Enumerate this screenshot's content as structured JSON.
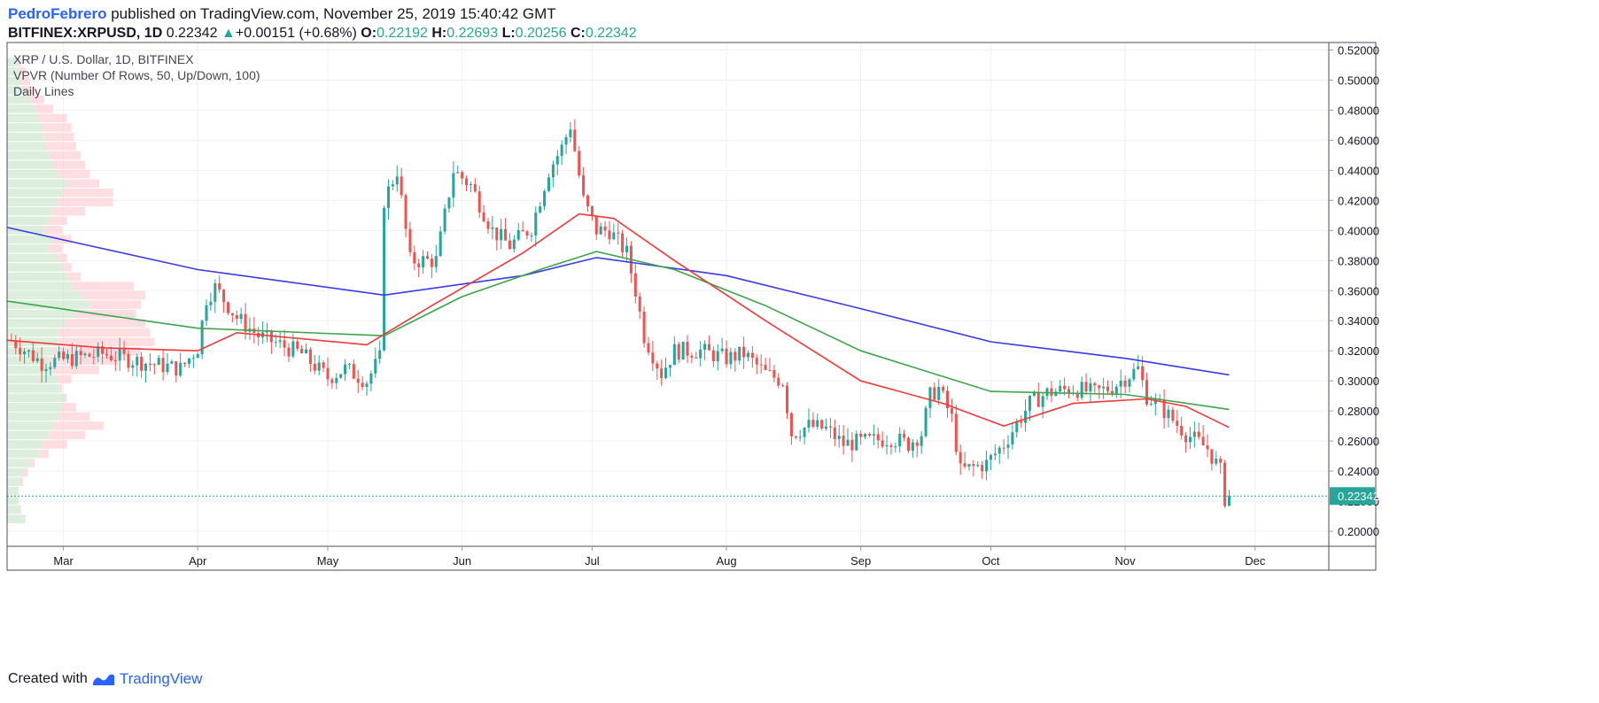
{
  "header": {
    "author": "PedroFebrero",
    "published_text": "published on TradingView.com, November 25, 2019 15:40:42 GMT",
    "symbol": "BITFINEX:XRPUSD, 1D",
    "last": "0.22342",
    "change": "+0.00151 (+0.68%)",
    "o_label": "O:",
    "o_value": "0.22192",
    "h_label": "H:",
    "h_value": "0.22693",
    "l_label": "L:",
    "l_value": "0.20256",
    "c_label": "C:",
    "c_value": "0.22342"
  },
  "legend": {
    "line1": "XRP / U.S. Dollar, 1D, BITFINEX",
    "line2": "VPVR (Number Of Rows, 50, Up/Down, 100)",
    "line3": "Daily Lines"
  },
  "footer": {
    "created_with": "Created with",
    "brand": "TradingView"
  },
  "colors": {
    "up": "#26a69a",
    "down": "#ef5350",
    "ma_short": "#f03a3a",
    "ma_mid": "#3da54a",
    "ma_long": "#3a3ae8",
    "price_tag": "#26a69a"
  },
  "chart_data": {
    "type": "candlestick",
    "y_range": [
      0.19,
      0.525
    ],
    "y_ticks": [
      0.2,
      0.22,
      0.24,
      0.26,
      0.28,
      0.3,
      0.32,
      0.34,
      0.36,
      0.38,
      0.4,
      0.42,
      0.44,
      0.46,
      0.48,
      0.5,
      0.52
    ],
    "y_tick_labels": [
      "0.20000",
      "0.22000",
      "0.24000",
      "0.26000",
      "0.28000",
      "0.30000",
      "0.32000",
      "0.34000",
      "0.36000",
      "0.38000",
      "0.40000",
      "0.42000",
      "0.44000",
      "0.46000",
      "0.48000",
      "0.50000",
      "0.52000"
    ],
    "x_range": [
      "2019-02-16",
      "2019-12-18"
    ],
    "x_ticks": [
      {
        "date": "2019-03-01",
        "label": "Mar"
      },
      {
        "date": "2019-04-01",
        "label": "Apr"
      },
      {
        "date": "2019-05-01",
        "label": "May"
      },
      {
        "date": "2019-06-01",
        "label": "Jun"
      },
      {
        "date": "2019-07-01",
        "label": "Jul"
      },
      {
        "date": "2019-08-01",
        "label": "Aug"
      },
      {
        "date": "2019-09-01",
        "label": "Sep"
      },
      {
        "date": "2019-10-01",
        "label": "Oct"
      },
      {
        "date": "2019-11-01",
        "label": "Nov"
      },
      {
        "date": "2019-12-01",
        "label": "Dec"
      }
    ],
    "first_candle_date": "2019-02-17",
    "last_price": 0.22342,
    "last_price_label": "0.22342",
    "price_anchors": [
      [
        "2019-02-17",
        0.327
      ],
      [
        "2019-02-24",
        0.312
      ],
      [
        "2019-03-01",
        0.314
      ],
      [
        "2019-03-10",
        0.318
      ],
      [
        "2019-03-20",
        0.312
      ],
      [
        "2019-03-28",
        0.308
      ],
      [
        "2019-04-01",
        0.322
      ],
      [
        "2019-04-03",
        0.355
      ],
      [
        "2019-04-05",
        0.362
      ],
      [
        "2019-04-10",
        0.342
      ],
      [
        "2019-04-15",
        0.33
      ],
      [
        "2019-04-25",
        0.318
      ],
      [
        "2019-05-01",
        0.302
      ],
      [
        "2019-05-05",
        0.308
      ],
      [
        "2019-05-10",
        0.3
      ],
      [
        "2019-05-13",
        0.315
      ],
      [
        "2019-05-14",
        0.42
      ],
      [
        "2019-05-17",
        0.44
      ],
      [
        "2019-05-20",
        0.38
      ],
      [
        "2019-05-26",
        0.38
      ],
      [
        "2019-05-30",
        0.44
      ],
      [
        "2019-06-03",
        0.43
      ],
      [
        "2019-06-08",
        0.4
      ],
      [
        "2019-06-12",
        0.39
      ],
      [
        "2019-06-17",
        0.402
      ],
      [
        "2019-06-21",
        0.44
      ],
      [
        "2019-06-24",
        0.455
      ],
      [
        "2019-06-26",
        0.47
      ],
      [
        "2019-06-29",
        0.42
      ],
      [
        "2019-07-02",
        0.4
      ],
      [
        "2019-07-05",
        0.4
      ],
      [
        "2019-07-09",
        0.385
      ],
      [
        "2019-07-11",
        0.36
      ],
      [
        "2019-07-13",
        0.33
      ],
      [
        "2019-07-17",
        0.305
      ],
      [
        "2019-07-20",
        0.32
      ],
      [
        "2019-07-26",
        0.32
      ],
      [
        "2019-08-01",
        0.315
      ],
      [
        "2019-08-05",
        0.318
      ],
      [
        "2019-08-10",
        0.305
      ],
      [
        "2019-08-14",
        0.3
      ],
      [
        "2019-08-16",
        0.265
      ],
      [
        "2019-08-20",
        0.27
      ],
      [
        "2019-08-24",
        0.268
      ],
      [
        "2019-08-28",
        0.258
      ],
      [
        "2019-09-03",
        0.26
      ],
      [
        "2019-09-08",
        0.262
      ],
      [
        "2019-09-12",
        0.258
      ],
      [
        "2019-09-15",
        0.265
      ],
      [
        "2019-09-17",
        0.29
      ],
      [
        "2019-09-19",
        0.295
      ],
      [
        "2019-09-22",
        0.275
      ],
      [
        "2019-09-24",
        0.24
      ],
      [
        "2019-09-30",
        0.245
      ],
      [
        "2019-10-04",
        0.258
      ],
      [
        "2019-10-10",
        0.285
      ],
      [
        "2019-10-14",
        0.292
      ],
      [
        "2019-10-20",
        0.295
      ],
      [
        "2019-10-25",
        0.292
      ],
      [
        "2019-10-29",
        0.296
      ],
      [
        "2019-11-04",
        0.308
      ],
      [
        "2019-11-06",
        0.29
      ],
      [
        "2019-11-10",
        0.28
      ],
      [
        "2019-11-15",
        0.265
      ],
      [
        "2019-11-20",
        0.255
      ],
      [
        "2019-11-23",
        0.24
      ],
      [
        "2019-11-24",
        0.222
      ],
      [
        "2019-11-25",
        0.22342
      ]
    ],
    "ma_long": [
      [
        "2019-02-16",
        0.402
      ],
      [
        "2019-04-01",
        0.374
      ],
      [
        "2019-05-14",
        0.357
      ],
      [
        "2019-06-15",
        0.37
      ],
      [
        "2019-07-02",
        0.382
      ],
      [
        "2019-08-01",
        0.37
      ],
      [
        "2019-09-01",
        0.348
      ],
      [
        "2019-10-01",
        0.326
      ],
      [
        "2019-11-01",
        0.315
      ],
      [
        "2019-11-25",
        0.304
      ]
    ],
    "ma_mid": [
      [
        "2019-02-16",
        0.353
      ],
      [
        "2019-04-01",
        0.335
      ],
      [
        "2019-05-14",
        0.33
      ],
      [
        "2019-06-01",
        0.356
      ],
      [
        "2019-06-20",
        0.375
      ],
      [
        "2019-07-02",
        0.386
      ],
      [
        "2019-07-20",
        0.374
      ],
      [
        "2019-08-10",
        0.35
      ],
      [
        "2019-09-01",
        0.32
      ],
      [
        "2019-10-01",
        0.293
      ],
      [
        "2019-11-01",
        0.291
      ],
      [
        "2019-11-25",
        0.281
      ]
    ],
    "ma_short": [
      [
        "2019-02-16",
        0.327
      ],
      [
        "2019-03-10",
        0.322
      ],
      [
        "2019-04-01",
        0.32
      ],
      [
        "2019-04-10",
        0.332
      ],
      [
        "2019-05-10",
        0.324
      ],
      [
        "2019-05-25",
        0.35
      ],
      [
        "2019-06-15",
        0.385
      ],
      [
        "2019-06-28",
        0.411
      ],
      [
        "2019-07-06",
        0.408
      ],
      [
        "2019-07-20",
        0.38
      ],
      [
        "2019-08-10",
        0.34
      ],
      [
        "2019-09-01",
        0.3
      ],
      [
        "2019-09-20",
        0.285
      ],
      [
        "2019-10-04",
        0.27
      ],
      [
        "2019-10-20",
        0.285
      ],
      [
        "2019-11-06",
        0.288
      ],
      [
        "2019-11-15",
        0.283
      ],
      [
        "2019-11-25",
        0.269
      ]
    ],
    "volume_profile": {
      "price_range": [
        0.205,
        0.515
      ],
      "rows": 50,
      "up_pct": [
        8,
        6,
        5,
        5,
        6,
        7,
        10,
        14,
        15,
        18,
        20,
        22,
        24,
        25,
        23,
        22,
        20,
        18,
        20,
        22,
        22,
        25,
        30,
        36,
        32,
        28,
        26,
        24,
        22,
        18,
        20,
        16,
        18,
        20,
        22,
        24,
        26,
        22,
        20,
        18,
        17,
        16,
        15,
        14,
        12,
        10,
        8,
        6,
        5,
        4
      ],
      "total_pct": [
        3,
        4,
        4,
        5,
        7,
        9,
        12,
        18,
        26,
        34,
        42,
        36,
        30,
        26,
        24,
        28,
        40,
        48,
        58,
        64,
        62,
        60,
        56,
        58,
        60,
        55,
        32,
        28,
        26,
        24,
        28,
        24,
        26,
        34,
        46,
        46,
        40,
        36,
        34,
        32,
        30,
        29,
        28,
        26,
        20,
        16,
        12,
        10,
        8,
        6
      ]
    }
  }
}
